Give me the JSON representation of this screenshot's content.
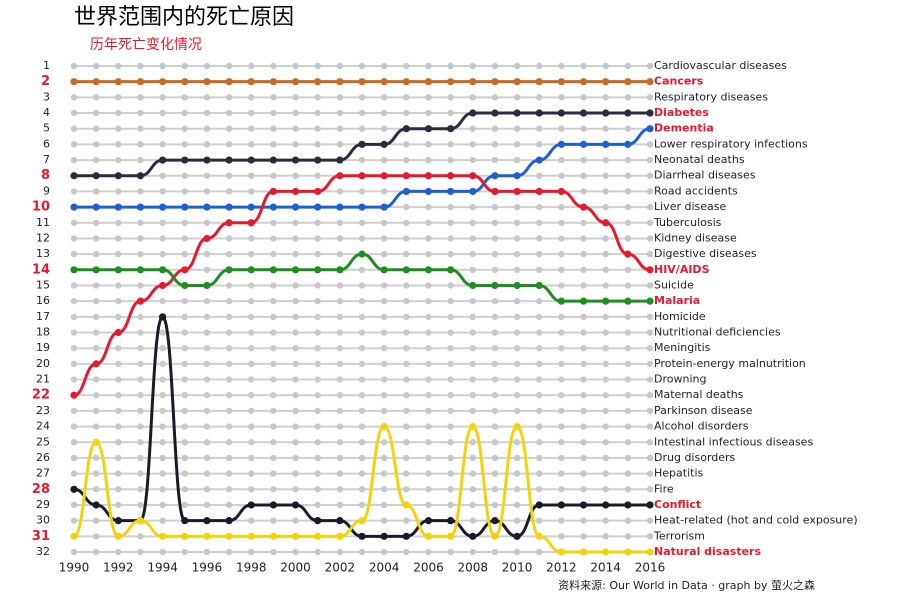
{
  "chart_data": {
    "type": "bump",
    "title": "世界范围内的死亡原因",
    "subtitle": "历年死亡变化情况",
    "source": "资料来源: Our World in Data · graph by 萤火之森",
    "x": [
      1990,
      1991,
      1992,
      1993,
      1994,
      1995,
      1996,
      1997,
      1998,
      1999,
      2000,
      2001,
      2002,
      2003,
      2004,
      2005,
      2006,
      2007,
      2008,
      2009,
      2010,
      2011,
      2012,
      2013,
      2014,
      2015,
      2016
    ],
    "xlim": [
      1990,
      2016
    ],
    "xticks": [
      1990,
      1992,
      1994,
      1996,
      1998,
      2000,
      2002,
      2004,
      2006,
      2008,
      2010,
      2012,
      2014,
      2016
    ],
    "ylim": [
      1,
      32
    ],
    "yticks": [
      1,
      2,
      3,
      4,
      5,
      6,
      7,
      8,
      9,
      10,
      11,
      12,
      13,
      14,
      15,
      16,
      17,
      18,
      19,
      20,
      21,
      22,
      23,
      24,
      25,
      26,
      27,
      28,
      29,
      30,
      31,
      32
    ],
    "labels": [
      "Cardiovascular diseases",
      null,
      "Respiratory diseases",
      null,
      null,
      "Lower respiratory infections",
      "Neonatal deaths",
      "Diarrheal diseases",
      "Road accidents",
      "Liver disease",
      "Tuberculosis",
      "Kidney disease",
      "Digestive diseases",
      null,
      "Suicide",
      null,
      "Homicide",
      "Nutritional deficiencies",
      "Meningitis",
      "Protein-energy malnutrition",
      "Drowning",
      "Maternal deaths",
      "Parkinson disease",
      "Alcohol disorders",
      "Intestinal infectious diseases",
      "Drug disorders",
      "Hepatitis",
      "Fire",
      null,
      "Heat-related (hot and cold exposure)",
      "Terrorism",
      null
    ],
    "series": [
      {
        "name": "Cancers",
        "color": "#cc6a1f",
        "values": [
          2,
          2,
          2,
          2,
          2,
          2,
          2,
          2,
          2,
          2,
          2,
          2,
          2,
          2,
          2,
          2,
          2,
          2,
          2,
          2,
          2,
          2,
          2,
          2,
          2,
          2,
          2
        ]
      },
      {
        "name": "Diabetes",
        "color": "#2b2b3f",
        "values": [
          8,
          8,
          8,
          8,
          7,
          7,
          7,
          7,
          7,
          7,
          7,
          7,
          7,
          6,
          6,
          5,
          5,
          5,
          4,
          4,
          4,
          4,
          4,
          4,
          4,
          4,
          4
        ]
      },
      {
        "name": "Dementia",
        "color": "#1e5fd6",
        "values": [
          10,
          10,
          10,
          10,
          10,
          10,
          10,
          10,
          10,
          10,
          10,
          10,
          10,
          10,
          10,
          9,
          9,
          9,
          9,
          8,
          8,
          7,
          6,
          6,
          6,
          6,
          5
        ]
      },
      {
        "name": "HIV/AIDS",
        "color": "#e8192c",
        "values": [
          22,
          20,
          18,
          16,
          15,
          14,
          12,
          11,
          11,
          9,
          9,
          9,
          8,
          8,
          8,
          8,
          8,
          8,
          8,
          9,
          9,
          9,
          9,
          10,
          11,
          13,
          14
        ]
      },
      {
        "name": "Malaria",
        "color": "#1e8f1e",
        "values": [
          14,
          14,
          14,
          14,
          14,
          15,
          15,
          14,
          14,
          14,
          14,
          14,
          14,
          13,
          14,
          14,
          14,
          14,
          15,
          15,
          15,
          15,
          16,
          16,
          16,
          16,
          16
        ]
      },
      {
        "name": "Conflict",
        "color": "#1a1a2a",
        "values": [
          28,
          29,
          30,
          30,
          17,
          30,
          30,
          30,
          29,
          29,
          29,
          30,
          30,
          31,
          31,
          31,
          30,
          30,
          31,
          30,
          31,
          29,
          29,
          29,
          29,
          29,
          29
        ]
      },
      {
        "name": "Natural disasters",
        "color": "#f5d20a",
        "values": [
          31,
          25,
          31,
          30,
          31,
          31,
          31,
          31,
          31,
          31,
          31,
          31,
          31,
          30,
          24,
          29,
          31,
          31,
          24,
          31,
          24,
          31,
          32,
          32,
          32,
          32,
          32
        ]
      }
    ]
  }
}
